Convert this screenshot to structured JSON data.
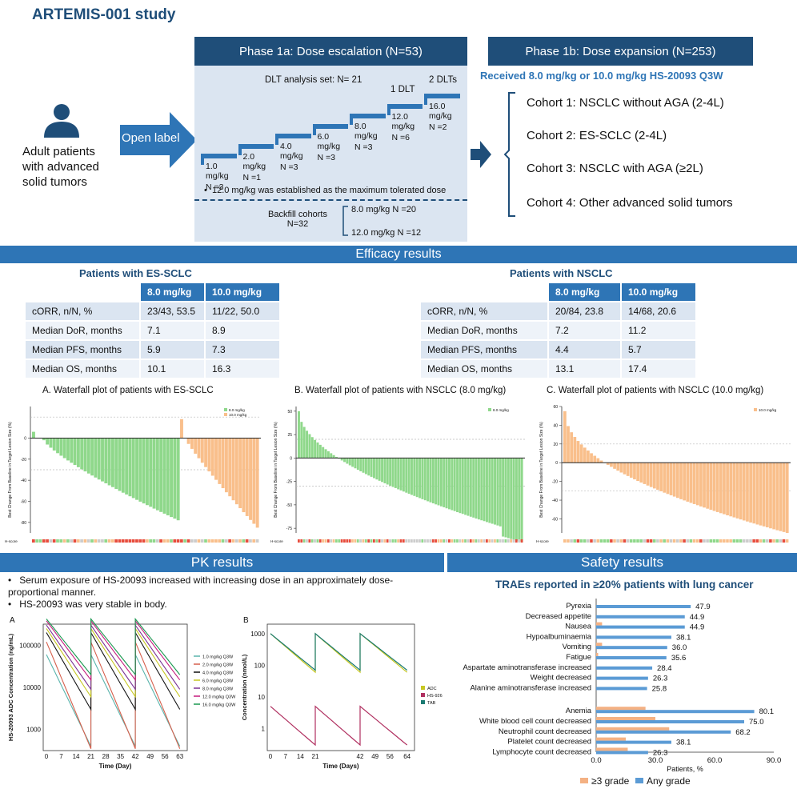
{
  "title": "ARTEMIS-001 study",
  "patients": "Adult patients with advanced solid tumors",
  "open_label": "Open label",
  "phase1a": {
    "header": "Phase 1a: Dose escalation (N=53)",
    "dlt_set": "DLT analysis set: N= 21",
    "dlt1": "1 DLT",
    "dlt2": "2 DLTs",
    "steps": [
      {
        "dose": "1.0",
        "unit": "mg/kg",
        "n": "N =3"
      },
      {
        "dose": "2.0",
        "unit": "mg/kg",
        "n": "N =1"
      },
      {
        "dose": "4.0",
        "unit": "mg/kg",
        "n": "N =3"
      },
      {
        "dose": "6.0",
        "unit": "mg/kg",
        "n": "N =3"
      },
      {
        "dose": "8.0",
        "unit": "mg/kg",
        "n": "N =3"
      },
      {
        "dose": "12.0",
        "unit": "mg/kg",
        "n": "N =6"
      },
      {
        "dose": "16.0",
        "unit": "mg/kg",
        "n": "N =2"
      }
    ],
    "mtd": "12.0 mg/kg was established as the maximum tolerated dose",
    "backfill": "Backfill cohorts",
    "backfill_n": "N=32",
    "backfill_8": "8.0 mg/kg N =20",
    "backfill_12": "12.0 mg/kg N =12"
  },
  "phase1b": {
    "header": "Phase 1b: Dose expansion (N=253)",
    "received": "Received 8.0 mg/kg or 10.0 mg/kg HS-20093 Q3W",
    "cohorts": [
      "Cohort 1:  NSCLC without AGA (2-4L)",
      "Cohort 2:  ES-SCLC (2-4L)",
      "Cohort 3:  NSCLC with AGA (≥2L)",
      "Cohort 4:  Other advanced solid tumors"
    ]
  },
  "efficacy": {
    "header": "Efficacy results",
    "sclc": {
      "title": "Patients with ES-SCLC",
      "cols": [
        "8.0 mg/kg",
        "10.0 mg/kg"
      ],
      "rows": [
        [
          "cORR, n/N, %",
          "23/43, 53.5",
          "11/22, 50.0"
        ],
        [
          "Median DoR, months",
          "7.1",
          "8.9"
        ],
        [
          "Median PFS, months",
          "5.9",
          "7.3"
        ],
        [
          "Median OS, months",
          "10.1",
          "16.3"
        ]
      ]
    },
    "nsclc": {
      "title": "Patients with NSCLC",
      "cols": [
        "8.0 mg/kg",
        "10.0 mg/kg"
      ],
      "rows": [
        [
          "cORR, n/N, %",
          "20/84, 23.8",
          "14/68, 20.6"
        ],
        [
          "Median DoR, months",
          "7.2",
          "11.2"
        ],
        [
          "Median PFS, months",
          "4.4",
          "5.7"
        ],
        [
          "Median OS, months",
          "13.1",
          "17.4"
        ]
      ]
    },
    "waterfall_titles": [
      "A. Waterfall plot of patients with ES-SCLC",
      "B. Waterfall plot of patients with NSCLC (8.0 mg/kg)",
      "C. Waterfall plot of patients with NSCLC (10.0 mg/kg)"
    ],
    "waterfall_ylabel": "Best Change From Baseline in Target Lesion Size (%)",
    "waterfall_legends": [
      [
        "8.0 mg/kg",
        "10.0 mg/kg"
      ],
      [
        "8.0 mg/kg"
      ],
      [
        "10.0 mg/kg"
      ]
    ],
    "colors": {
      "green": "#8fd88b",
      "orange": "#f9bf8b"
    }
  },
  "pk": {
    "header": "PK results",
    "bullets": [
      "Serum exposure of HS-20093 increased with increasing dose in an approximately dose-proportional manner.",
      "HS-20093 was very stable in body."
    ],
    "panelA": {
      "label": "A",
      "ylabel": "HS-20093 ADC Concentration (ng/mL)",
      "xlabel": "Time (Day)",
      "xticks": [
        "0",
        "7",
        "14",
        "21",
        "28",
        "35",
        "42",
        "49",
        "56",
        "63"
      ],
      "yticks": [
        "100000",
        "10000",
        "1000"
      ],
      "legend": [
        "1.0 mg/kg Q3W",
        "2.0 mg/kg Q3W",
        "4.0 mg/kg Q3W",
        "6.0 mg/kg Q3W",
        "8.0 mg/kg Q3W",
        "12.0 mg/kg Q3W",
        "16.0 mg/kg Q3W"
      ],
      "legend_colors": [
        "#5ab4ac",
        "#d6604d",
        "#111111",
        "#c7c722",
        "#7b3294",
        "#c51b7d",
        "#1a9850"
      ]
    },
    "panelB": {
      "label": "B",
      "ylabel": "Concentration (nmol/L)",
      "xlabel": "Time (Days)",
      "xticks": [
        "0",
        "7",
        "14",
        "21",
        "42",
        "49",
        "56",
        "64"
      ],
      "yticks": [
        "1000",
        "100",
        "10",
        "1"
      ],
      "legend": [
        "ADC",
        "HS-9265",
        "TAB"
      ],
      "legend_colors": [
        "#c7c722",
        "#b03060",
        "#1a7a72"
      ]
    }
  },
  "safety": {
    "header": "Safety results",
    "title": "TRAEs reported in ≥20% patients with lung cancer",
    "chart_data": {
      "type": "bar",
      "orientation": "horizontal",
      "categories": [
        "Pyrexia",
        "Decreased appetite",
        "Nausea",
        "Hypoalbuminaemia",
        "Vomiting",
        "Fatigue",
        "Aspartate aminotransferase increased",
        "Weight decreased",
        "Alanine aminotransferase increased",
        "Anemia",
        "White blood cell count decreased",
        "Neutrophil count decreased",
        "Platelet count decreased",
        "Lymphocyte count decreased"
      ],
      "series": [
        {
          "name": "≥3 grade",
          "values": [
            0,
            0,
            3,
            0,
            3,
            1,
            0,
            0,
            0,
            25,
            30,
            37,
            15,
            16
          ],
          "color": "#f4b183"
        },
        {
          "name": "Any grade",
          "values": [
            47.9,
            44.9,
            44.9,
            38.1,
            36.0,
            35.6,
            28.4,
            26.3,
            25.8,
            80.1,
            75.0,
            68.2,
            38.1,
            26.3
          ],
          "color": "#5b9bd5"
        }
      ],
      "labels": [
        "47.9",
        "44.9",
        "44.9",
        "38.1",
        "36.0",
        "35.6",
        "28.4",
        "26.3",
        "25.8",
        "80.1",
        "75.0",
        "68.2",
        "38.1",
        "26.3"
      ],
      "xticks": [
        "0.0",
        "30.0",
        "60.0",
        "90.0"
      ],
      "xlim": [
        0,
        90
      ],
      "xlabel": "Patients, %"
    }
  }
}
